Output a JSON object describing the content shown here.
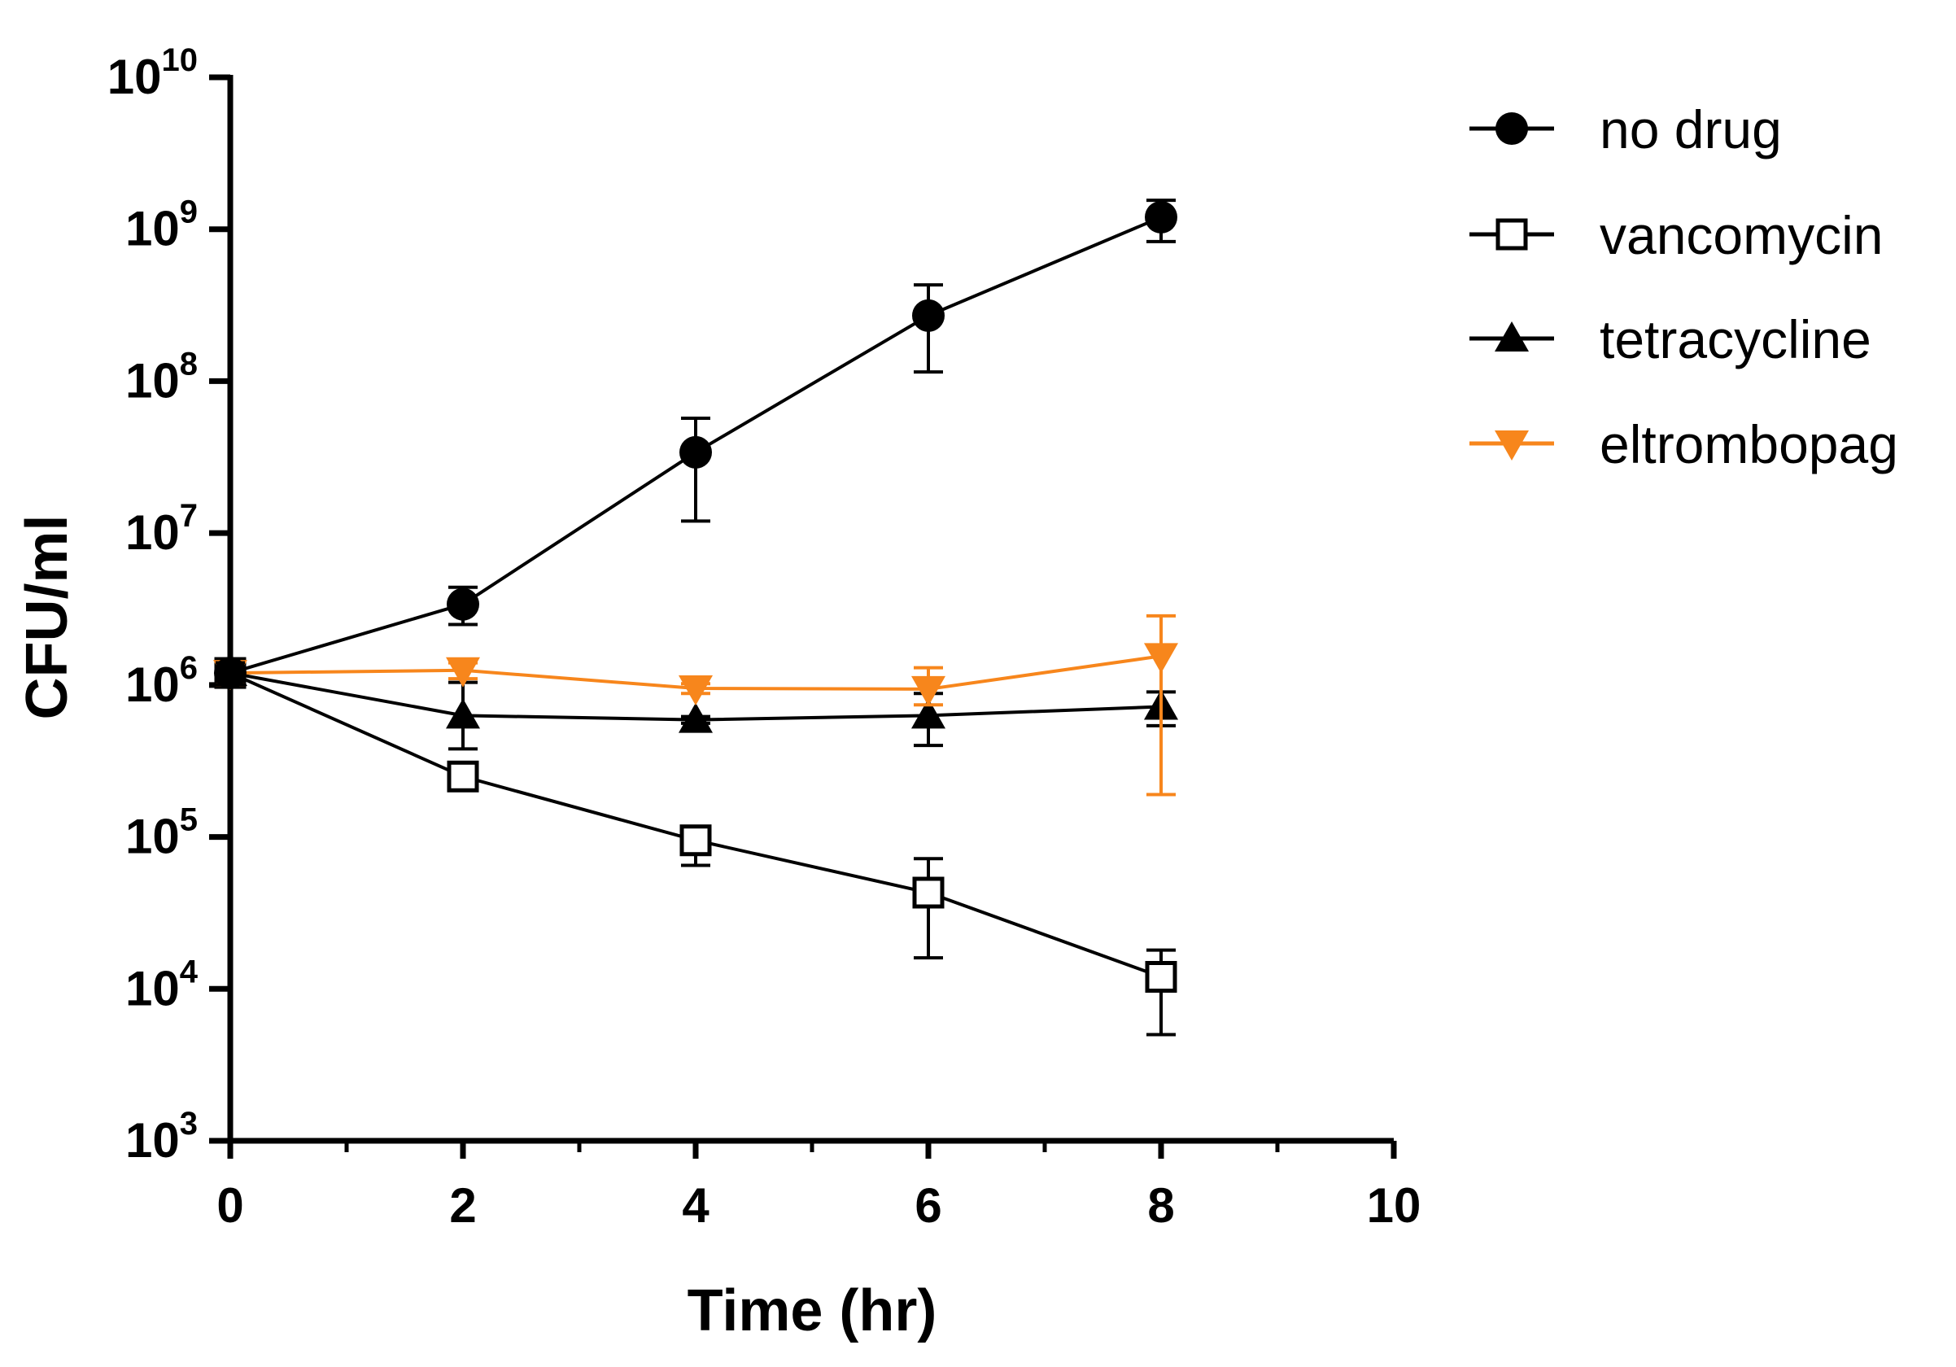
{
  "chart_data": {
    "type": "line",
    "title": "",
    "xlabel": "Time (hr)",
    "ylabel": "CFU/ml",
    "xlim": [
      0,
      10
    ],
    "ylim": [
      1000,
      10000000000
    ],
    "yscale": "log",
    "grid": false,
    "legend_position": "right",
    "x_ticks": [
      "0",
      "2",
      "4",
      "6",
      "8",
      "10"
    ],
    "y_ticks": [
      {
        "base": "10",
        "exp": "3"
      },
      {
        "base": "10",
        "exp": "4"
      },
      {
        "base": "10",
        "exp": "5"
      },
      {
        "base": "10",
        "exp": "6"
      },
      {
        "base": "10",
        "exp": "7"
      },
      {
        "base": "10",
        "exp": "8"
      },
      {
        "base": "10",
        "exp": "9"
      },
      {
        "base": "10",
        "exp": "10"
      }
    ],
    "series": [
      {
        "name": "no drug",
        "marker": "circle",
        "color": "#000000",
        "x": [
          0,
          2,
          4,
          6,
          8
        ],
        "values": [
          1200000,
          3400000,
          34000000,
          270000000,
          1200000000
        ],
        "err_low": [
          1000000,
          2500000,
          12000000,
          115000000,
          830000000
        ],
        "err_high": [
          1400000,
          4400000,
          57000000,
          430000000,
          1550000000
        ]
      },
      {
        "name": "vancomycin",
        "marker": "square-open",
        "color": "#000000",
        "x": [
          0,
          2,
          4,
          6,
          8
        ],
        "values": [
          1200000,
          250000,
          95000,
          43000,
          12000
        ],
        "err_low": [
          1000000,
          220000,
          65000,
          16000,
          5000
        ],
        "err_high": [
          1400000,
          280000,
          110000,
          72000,
          18000
        ]
      },
      {
        "name": "tetracycline",
        "marker": "triangle-up",
        "color": "#000000",
        "x": [
          0,
          2,
          4,
          6,
          8
        ],
        "values": [
          1200000,
          630000,
          590000,
          630000,
          720000
        ],
        "err_low": [
          1000000,
          380000,
          560000,
          400000,
          540000
        ],
        "err_high": [
          1400000,
          1040000,
          620000,
          880000,
          900000
        ]
      },
      {
        "name": "eltrombopag",
        "marker": "triangle-down",
        "color": "#F7861C",
        "x": [
          0,
          2,
          4,
          6,
          8
        ],
        "values": [
          1200000,
          1250000,
          950000,
          940000,
          1550000
        ],
        "err_low": [
          1000000,
          1100000,
          880000,
          740000,
          190000
        ],
        "err_high": [
          1400000,
          1400000,
          1020000,
          1300000,
          2850000
        ]
      }
    ]
  }
}
